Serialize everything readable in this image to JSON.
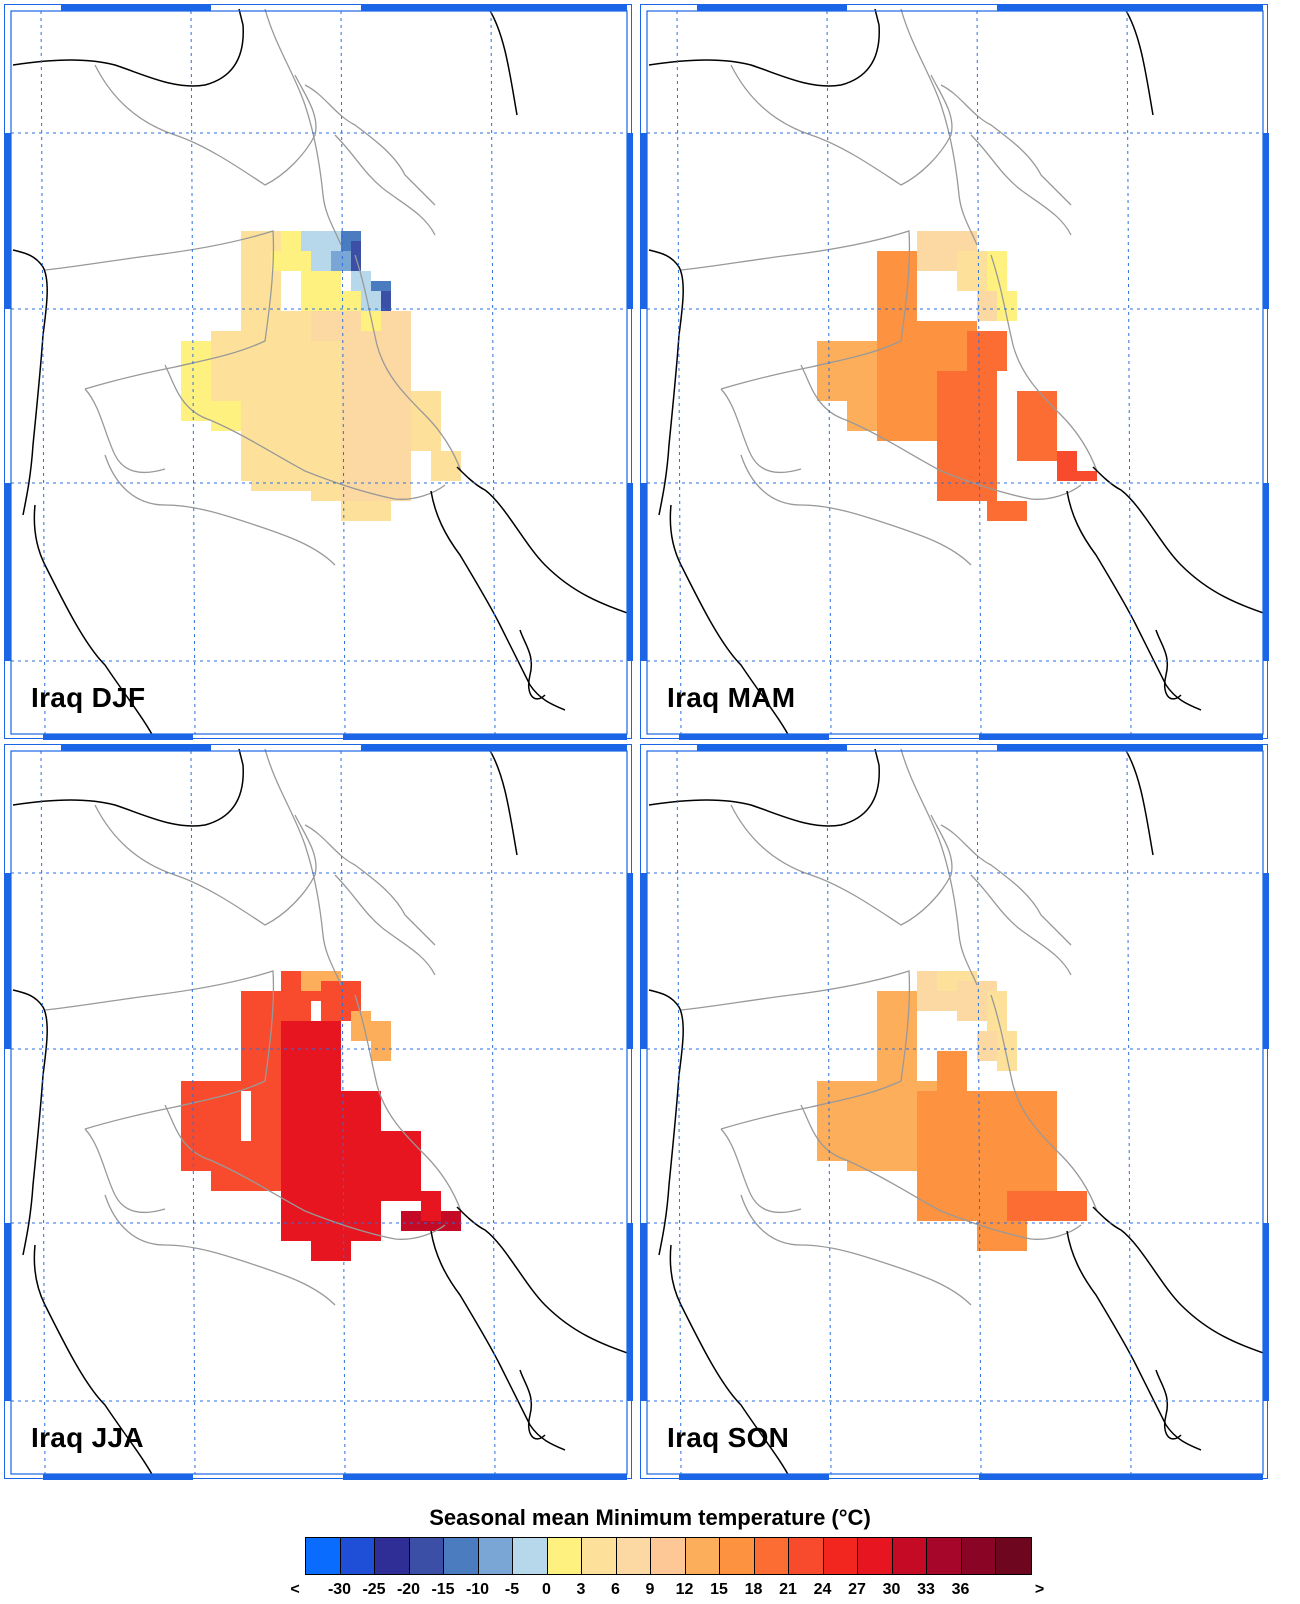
{
  "panels": [
    {
      "label": "Iraq DJF",
      "season": "DJF"
    },
    {
      "label": "Iraq MAM",
      "season": "MAM"
    },
    {
      "label": "Iraq JJA",
      "season": "JJA"
    },
    {
      "label": "Iraq SON",
      "season": "SON"
    }
  ],
  "legend": {
    "title": "Seasonal mean Minimum temperature (°C)",
    "tick_labels": [
      "<",
      "-30",
      "-25",
      "-20",
      "-15",
      "-10",
      "-5",
      "0",
      "3",
      "6",
      "9",
      "12",
      "15",
      "18",
      "21",
      "24",
      "27",
      "30",
      "33",
      "36",
      ">"
    ],
    "colors": [
      "#0a6cff",
      "#1f4fd6",
      "#2e2e96",
      "#3a4fa5",
      "#4c7cc0",
      "#79a6d4",
      "#b7d8ea",
      "#fff17f",
      "#fde19a",
      "#fcd9a2",
      "#fdc895",
      "#fdae5a",
      "#fd9240",
      "#fb6d33",
      "#f84a2d",
      "#f3261f",
      "#e61520",
      "#c40a25",
      "#a5062a",
      "#8a0426",
      "#6e0620"
    ]
  },
  "chart_data": {
    "type": "heatmap",
    "title": "Seasonal mean Minimum temperature (°C)",
    "region": "Iraq",
    "seasons": [
      "DJF",
      "MAM",
      "JJA",
      "SON"
    ],
    "units": "°C",
    "levels": [
      -30,
      -25,
      -20,
      -15,
      -10,
      -5,
      0,
      3,
      6,
      9,
      12,
      15,
      18,
      21,
      24,
      27,
      30,
      33,
      36
    ],
    "season_values_approx": {
      "DJF": {
        "west_desert": 4,
        "central_south": 6,
        "north_mountains": -7
      },
      "MAM": {
        "north": 14,
        "central": 16,
        "south": 19
      },
      "JJA": {
        "north": 24,
        "central": 26,
        "south": 28
      },
      "SON": {
        "north": 12,
        "central": 17,
        "south": 19
      }
    }
  },
  "colors": {
    "frame": "#1a66e6",
    "grid": "#2b6fe0",
    "coast": "#000000",
    "border": "#999999"
  }
}
